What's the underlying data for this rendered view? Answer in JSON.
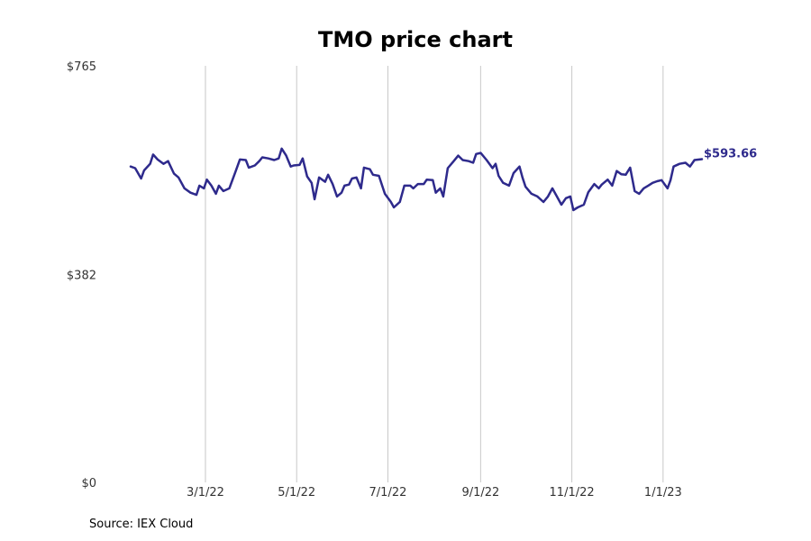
{
  "colors": {
    "line": "#2e2a8c"
  },
  "source": "Source: IEX Cloud",
  "chart_data": {
    "type": "line",
    "title": "TMO price chart",
    "xlabel": "",
    "ylabel": "",
    "x_start": "2022-01-10",
    "x_end": "2023-01-27",
    "xlim": [
      "2022-01-10",
      "2023-01-27"
    ],
    "ylim": [
      0,
      765
    ],
    "y_ticks": [
      {
        "value": 0,
        "label": "$0"
      },
      {
        "value": 382,
        "label": "$382"
      },
      {
        "value": 765,
        "label": "$765"
      }
    ],
    "x_ticks": [
      {
        "date": "2022-03-01",
        "label": "3/1/22"
      },
      {
        "date": "2022-05-01",
        "label": "5/1/22"
      },
      {
        "date": "2022-07-01",
        "label": "7/1/22"
      },
      {
        "date": "2022-09-01",
        "label": "9/1/22"
      },
      {
        "date": "2022-11-01",
        "label": "11/1/22"
      },
      {
        "date": "2023-01-01",
        "label": "1/1/23"
      }
    ],
    "grid": "vertical",
    "last_value_label": "$593.66",
    "series": [
      {
        "points": [
          [
            "2022-01-10",
            580
          ],
          [
            "2022-01-13",
            577
          ],
          [
            "2022-01-17",
            558
          ],
          [
            "2022-01-19",
            573
          ],
          [
            "2022-01-23",
            585
          ],
          [
            "2022-01-25",
            602
          ],
          [
            "2022-01-28",
            593
          ],
          [
            "2022-02-01",
            585
          ],
          [
            "2022-02-04",
            590
          ],
          [
            "2022-02-08",
            567
          ],
          [
            "2022-02-11",
            560
          ],
          [
            "2022-02-15",
            540
          ],
          [
            "2022-02-19",
            532
          ],
          [
            "2022-02-23",
            528
          ],
          [
            "2022-02-25",
            545
          ],
          [
            "2022-02-28",
            540
          ],
          [
            "2022-03-02",
            556
          ],
          [
            "2022-03-05",
            545
          ],
          [
            "2022-03-08",
            530
          ],
          [
            "2022-03-10",
            545
          ],
          [
            "2022-03-13",
            535
          ],
          [
            "2022-03-17",
            540
          ],
          [
            "2022-03-21",
            570
          ],
          [
            "2022-03-24",
            593
          ],
          [
            "2022-03-28",
            592
          ],
          [
            "2022-03-30",
            578
          ],
          [
            "2022-04-03",
            582
          ],
          [
            "2022-04-06",
            590
          ],
          [
            "2022-04-08",
            597
          ],
          [
            "2022-04-12",
            595
          ],
          [
            "2022-04-16",
            592
          ],
          [
            "2022-04-19",
            595
          ],
          [
            "2022-04-21",
            613
          ],
          [
            "2022-04-24",
            600
          ],
          [
            "2022-04-27",
            580
          ],
          [
            "2022-04-29",
            582
          ],
          [
            "2022-05-03",
            583
          ],
          [
            "2022-05-05",
            595
          ],
          [
            "2022-05-08",
            562
          ],
          [
            "2022-05-11",
            550
          ],
          [
            "2022-05-13",
            520
          ],
          [
            "2022-05-16",
            560
          ],
          [
            "2022-05-20",
            552
          ],
          [
            "2022-05-22",
            565
          ],
          [
            "2022-05-25",
            548
          ],
          [
            "2022-05-28",
            525
          ],
          [
            "2022-05-31",
            532
          ],
          [
            "2022-06-02",
            545
          ],
          [
            "2022-06-05",
            547
          ],
          [
            "2022-06-07",
            558
          ],
          [
            "2022-06-10",
            560
          ],
          [
            "2022-06-13",
            540
          ],
          [
            "2022-06-15",
            578
          ],
          [
            "2022-06-19",
            575
          ],
          [
            "2022-06-21",
            565
          ],
          [
            "2022-06-25",
            563
          ],
          [
            "2022-06-29",
            530
          ],
          [
            "2022-07-03",
            515
          ],
          [
            "2022-07-05",
            505
          ],
          [
            "2022-07-09",
            515
          ],
          [
            "2022-07-12",
            545
          ],
          [
            "2022-07-16",
            545
          ],
          [
            "2022-07-18",
            540
          ],
          [
            "2022-07-21",
            548
          ],
          [
            "2022-07-25",
            548
          ],
          [
            "2022-07-27",
            556
          ],
          [
            "2022-07-31",
            555
          ],
          [
            "2022-08-02",
            532
          ],
          [
            "2022-08-05",
            540
          ],
          [
            "2022-08-07",
            525
          ],
          [
            "2022-08-10",
            577
          ],
          [
            "2022-08-14",
            590
          ],
          [
            "2022-08-17",
            600
          ],
          [
            "2022-08-20",
            592
          ],
          [
            "2022-08-24",
            590
          ],
          [
            "2022-08-27",
            587
          ],
          [
            "2022-08-29",
            603
          ],
          [
            "2022-09-01",
            605
          ],
          [
            "2022-09-05",
            592
          ],
          [
            "2022-09-09",
            577
          ],
          [
            "2022-09-11",
            585
          ],
          [
            "2022-09-13",
            563
          ],
          [
            "2022-09-16",
            550
          ],
          [
            "2022-09-20",
            545
          ],
          [
            "2022-09-23",
            568
          ],
          [
            "2022-09-27",
            580
          ],
          [
            "2022-09-29",
            560
          ],
          [
            "2022-10-01",
            543
          ],
          [
            "2022-10-05",
            530
          ],
          [
            "2022-10-09",
            525
          ],
          [
            "2022-10-13",
            515
          ],
          [
            "2022-10-16",
            525
          ],
          [
            "2022-10-19",
            540
          ],
          [
            "2022-10-22",
            525
          ],
          [
            "2022-10-25",
            510
          ],
          [
            "2022-10-28",
            522
          ],
          [
            "2022-10-31",
            525
          ],
          [
            "2022-11-02",
            500
          ],
          [
            "2022-11-05",
            505
          ],
          [
            "2022-11-09",
            510
          ],
          [
            "2022-11-12",
            533
          ],
          [
            "2022-11-16",
            548
          ],
          [
            "2022-11-19",
            540
          ],
          [
            "2022-11-21",
            547
          ],
          [
            "2022-11-25",
            556
          ],
          [
            "2022-11-28",
            545
          ],
          [
            "2022-12-01",
            572
          ],
          [
            "2022-12-04",
            566
          ],
          [
            "2022-12-07",
            565
          ],
          [
            "2022-12-10",
            578
          ],
          [
            "2022-12-13",
            535
          ],
          [
            "2022-12-16",
            530
          ],
          [
            "2022-12-19",
            540
          ],
          [
            "2022-12-22",
            545
          ],
          [
            "2022-12-25",
            550
          ],
          [
            "2022-12-28",
            553
          ],
          [
            "2022-12-31",
            555
          ],
          [
            "2023-01-04",
            540
          ],
          [
            "2023-01-06",
            555
          ],
          [
            "2023-01-08",
            580
          ],
          [
            "2023-01-12",
            585
          ],
          [
            "2023-01-16",
            587
          ],
          [
            "2023-01-19",
            580
          ],
          [
            "2023-01-22",
            592
          ],
          [
            "2023-01-27",
            593.66
          ]
        ]
      }
    ]
  }
}
